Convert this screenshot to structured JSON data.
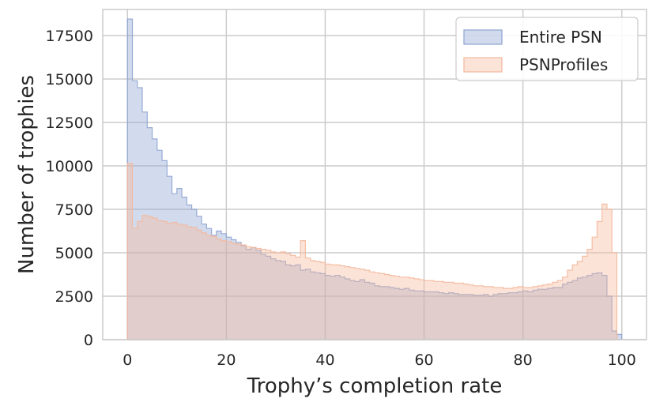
{
  "chart_data": {
    "type": "histogram",
    "xlabel": "Trophy’s completion rate",
    "ylabel": "Number of trophies",
    "xlim": [
      -5,
      105
    ],
    "ylim": [
      0,
      19000
    ],
    "x_ticks": [
      0,
      20,
      40,
      60,
      80,
      100
    ],
    "y_ticks": [
      0,
      2500,
      5000,
      7500,
      10000,
      12500,
      15000,
      17500
    ],
    "grid": true,
    "legend_position": "top-right",
    "bin_width": 1,
    "bin_start": 0,
    "series": [
      {
        "name": "Entire PSN",
        "color": "#8ea4d2",
        "values": [
          18450,
          14900,
          14500,
          13100,
          12200,
          11550,
          10900,
          10300,
          9400,
          8400,
          8700,
          8200,
          7750,
          7500,
          7100,
          6650,
          6400,
          6000,
          6250,
          6100,
          5900,
          5750,
          5600,
          5400,
          5200,
          5300,
          5150,
          4900,
          4800,
          4650,
          4550,
          4500,
          4300,
          4250,
          4300,
          4000,
          4050,
          3900,
          3850,
          3800,
          3700,
          3650,
          3700,
          3600,
          3500,
          3400,
          3350,
          3450,
          3300,
          3250,
          3100,
          3050,
          3050,
          3000,
          2950,
          2900,
          2950,
          2850,
          2800,
          2800,
          2750,
          2750,
          2750,
          2700,
          2650,
          2700,
          2650,
          2600,
          2600,
          2600,
          2550,
          2550,
          2600,
          2500,
          2600,
          2650,
          2650,
          2700,
          2700,
          2750,
          2800,
          2750,
          2850,
          2900,
          2900,
          2950,
          3000,
          3000,
          3200,
          3300,
          3400,
          3550,
          3600,
          3700,
          3800,
          3850,
          3700,
          2500,
          500,
          300
        ]
      },
      {
        "name": "PSNProfiles",
        "color": "#f4b89c",
        "values": [
          10150,
          6400,
          6800,
          7150,
          7100,
          7000,
          6850,
          6800,
          6700,
          6750,
          6650,
          6600,
          6500,
          6450,
          6300,
          6150,
          6000,
          5950,
          5800,
          5700,
          5650,
          5550,
          5500,
          5450,
          5350,
          5300,
          5250,
          5200,
          5150,
          5050,
          5000,
          5050,
          4950,
          4850,
          4750,
          5700,
          4700,
          4550,
          4500,
          4450,
          4350,
          4300,
          4300,
          4250,
          4200,
          4150,
          4100,
          4050,
          4000,
          3900,
          3850,
          3800,
          3750,
          3700,
          3650,
          3600,
          3600,
          3550,
          3500,
          3450,
          3400,
          3400,
          3350,
          3350,
          3300,
          3300,
          3250,
          3250,
          3200,
          3150,
          3100,
          3100,
          3050,
          3050,
          3000,
          3000,
          2950,
          2950,
          3000,
          3050,
          3000,
          3000,
          3050,
          3100,
          3150,
          3200,
          3300,
          3400,
          3600,
          4000,
          4300,
          4500,
          4800,
          5200,
          5900,
          6800,
          7800,
          7500,
          5000,
          0
        ]
      }
    ]
  }
}
